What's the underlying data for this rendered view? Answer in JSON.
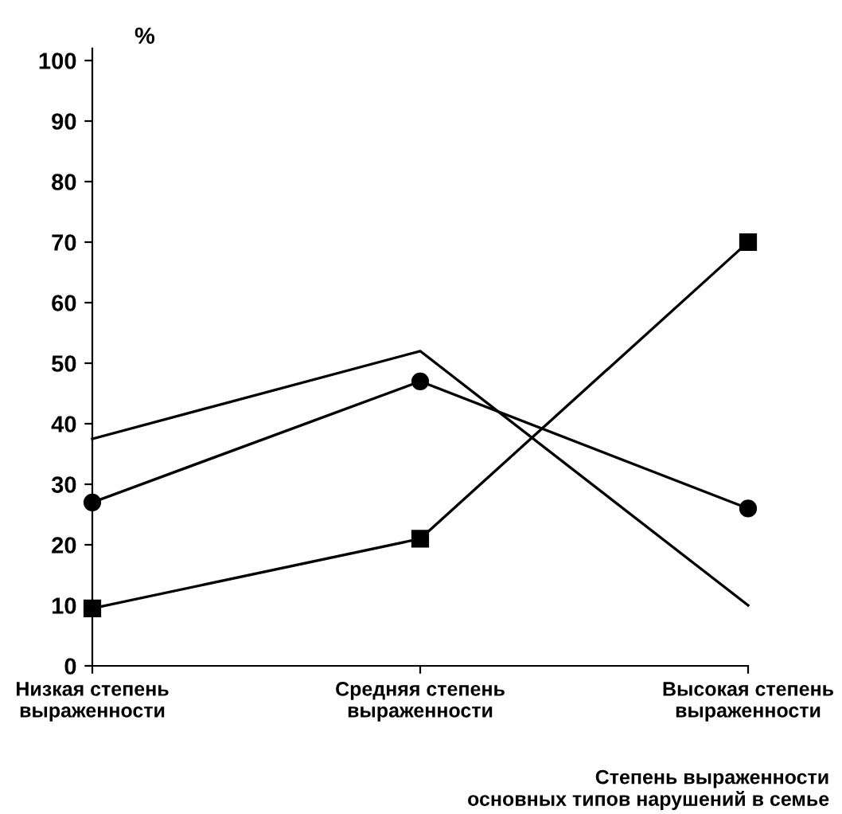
{
  "chart_data": {
    "type": "line",
    "ylabel": "%",
    "xlabel": "Степень выраженности\nосновных типов нарушений в семье",
    "categories": [
      "Низкая степень\nвыраженности",
      "Средняя степень\nвыраженности",
      "Высокая степень\nвыраженности"
    ],
    "series": [
      {
        "color": "#000000",
        "marker": "none",
        "values": [
          37.5,
          52,
          10
        ]
      },
      {
        "color": "#000000",
        "marker": "circle",
        "values": [
          27,
          47,
          26
        ]
      },
      {
        "color": "#000000",
        "marker": "square",
        "values": [
          9.5,
          21,
          70
        ]
      }
    ],
    "ylim": [
      0,
      102
    ],
    "yticks": [
      0,
      10,
      20,
      30,
      40,
      50,
      60,
      70,
      80,
      90,
      100
    ],
    "grid": false,
    "legend": false
  }
}
